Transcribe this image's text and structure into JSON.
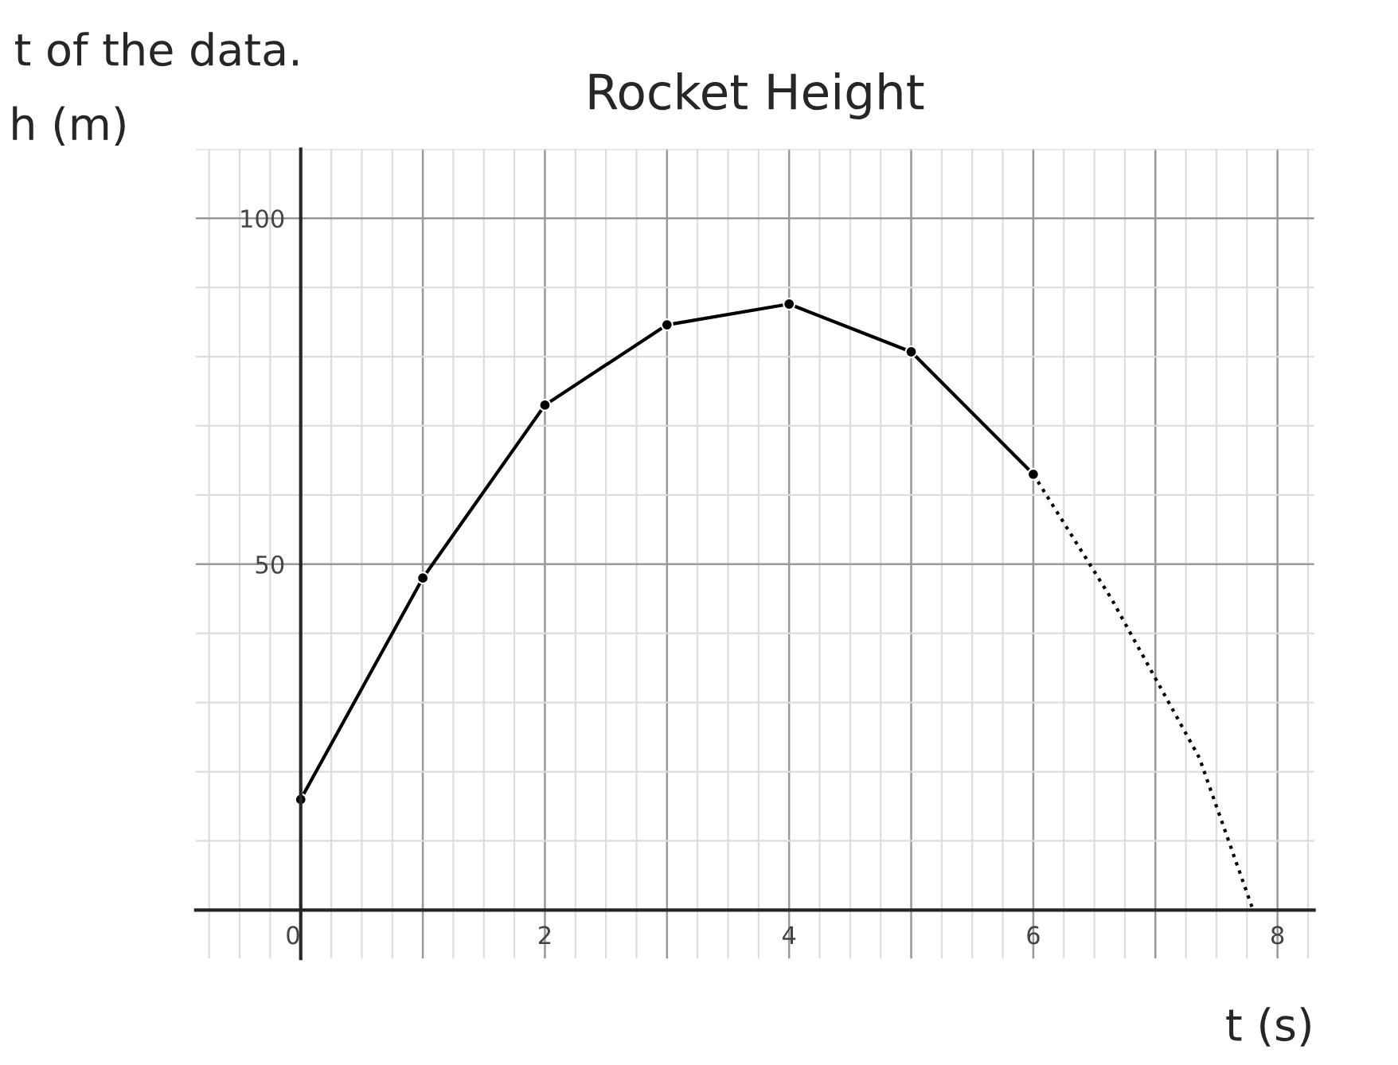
{
  "chart_data": {
    "type": "line",
    "title": "Rocket Height",
    "xlabel": "t (s)",
    "ylabel": "h (m)",
    "annotations": [
      "t of the data."
    ],
    "series": [
      {
        "color": "#000000",
        "marker": "circle",
        "line_style": "solid",
        "x": [
          0,
          1,
          2,
          3,
          4,
          5,
          6
        ],
        "values": [
          16,
          48,
          73,
          84.6,
          87.6,
          80.7,
          63
        ]
      },
      {
        "color": "#000000",
        "marker": "none",
        "line_style": "dotted",
        "x": [
          6,
          6.64,
          7.36,
          7.8
        ],
        "values": [
          63,
          45,
          22,
          0
        ]
      }
    ],
    "xlim": [
      -0.86,
      8.3
    ],
    "ylim": [
      -7,
      110
    ],
    "xticks": [
      0,
      {
        "value": 1,
        "label": null
      },
      2,
      {
        "value": 3,
        "label": null
      },
      4,
      {
        "value": 5,
        "label": null
      },
      6,
      {
        "value": 7,
        "label": null
      },
      8
    ],
    "yticks": [
      50,
      100
    ],
    "grid": true,
    "legend": false
  }
}
